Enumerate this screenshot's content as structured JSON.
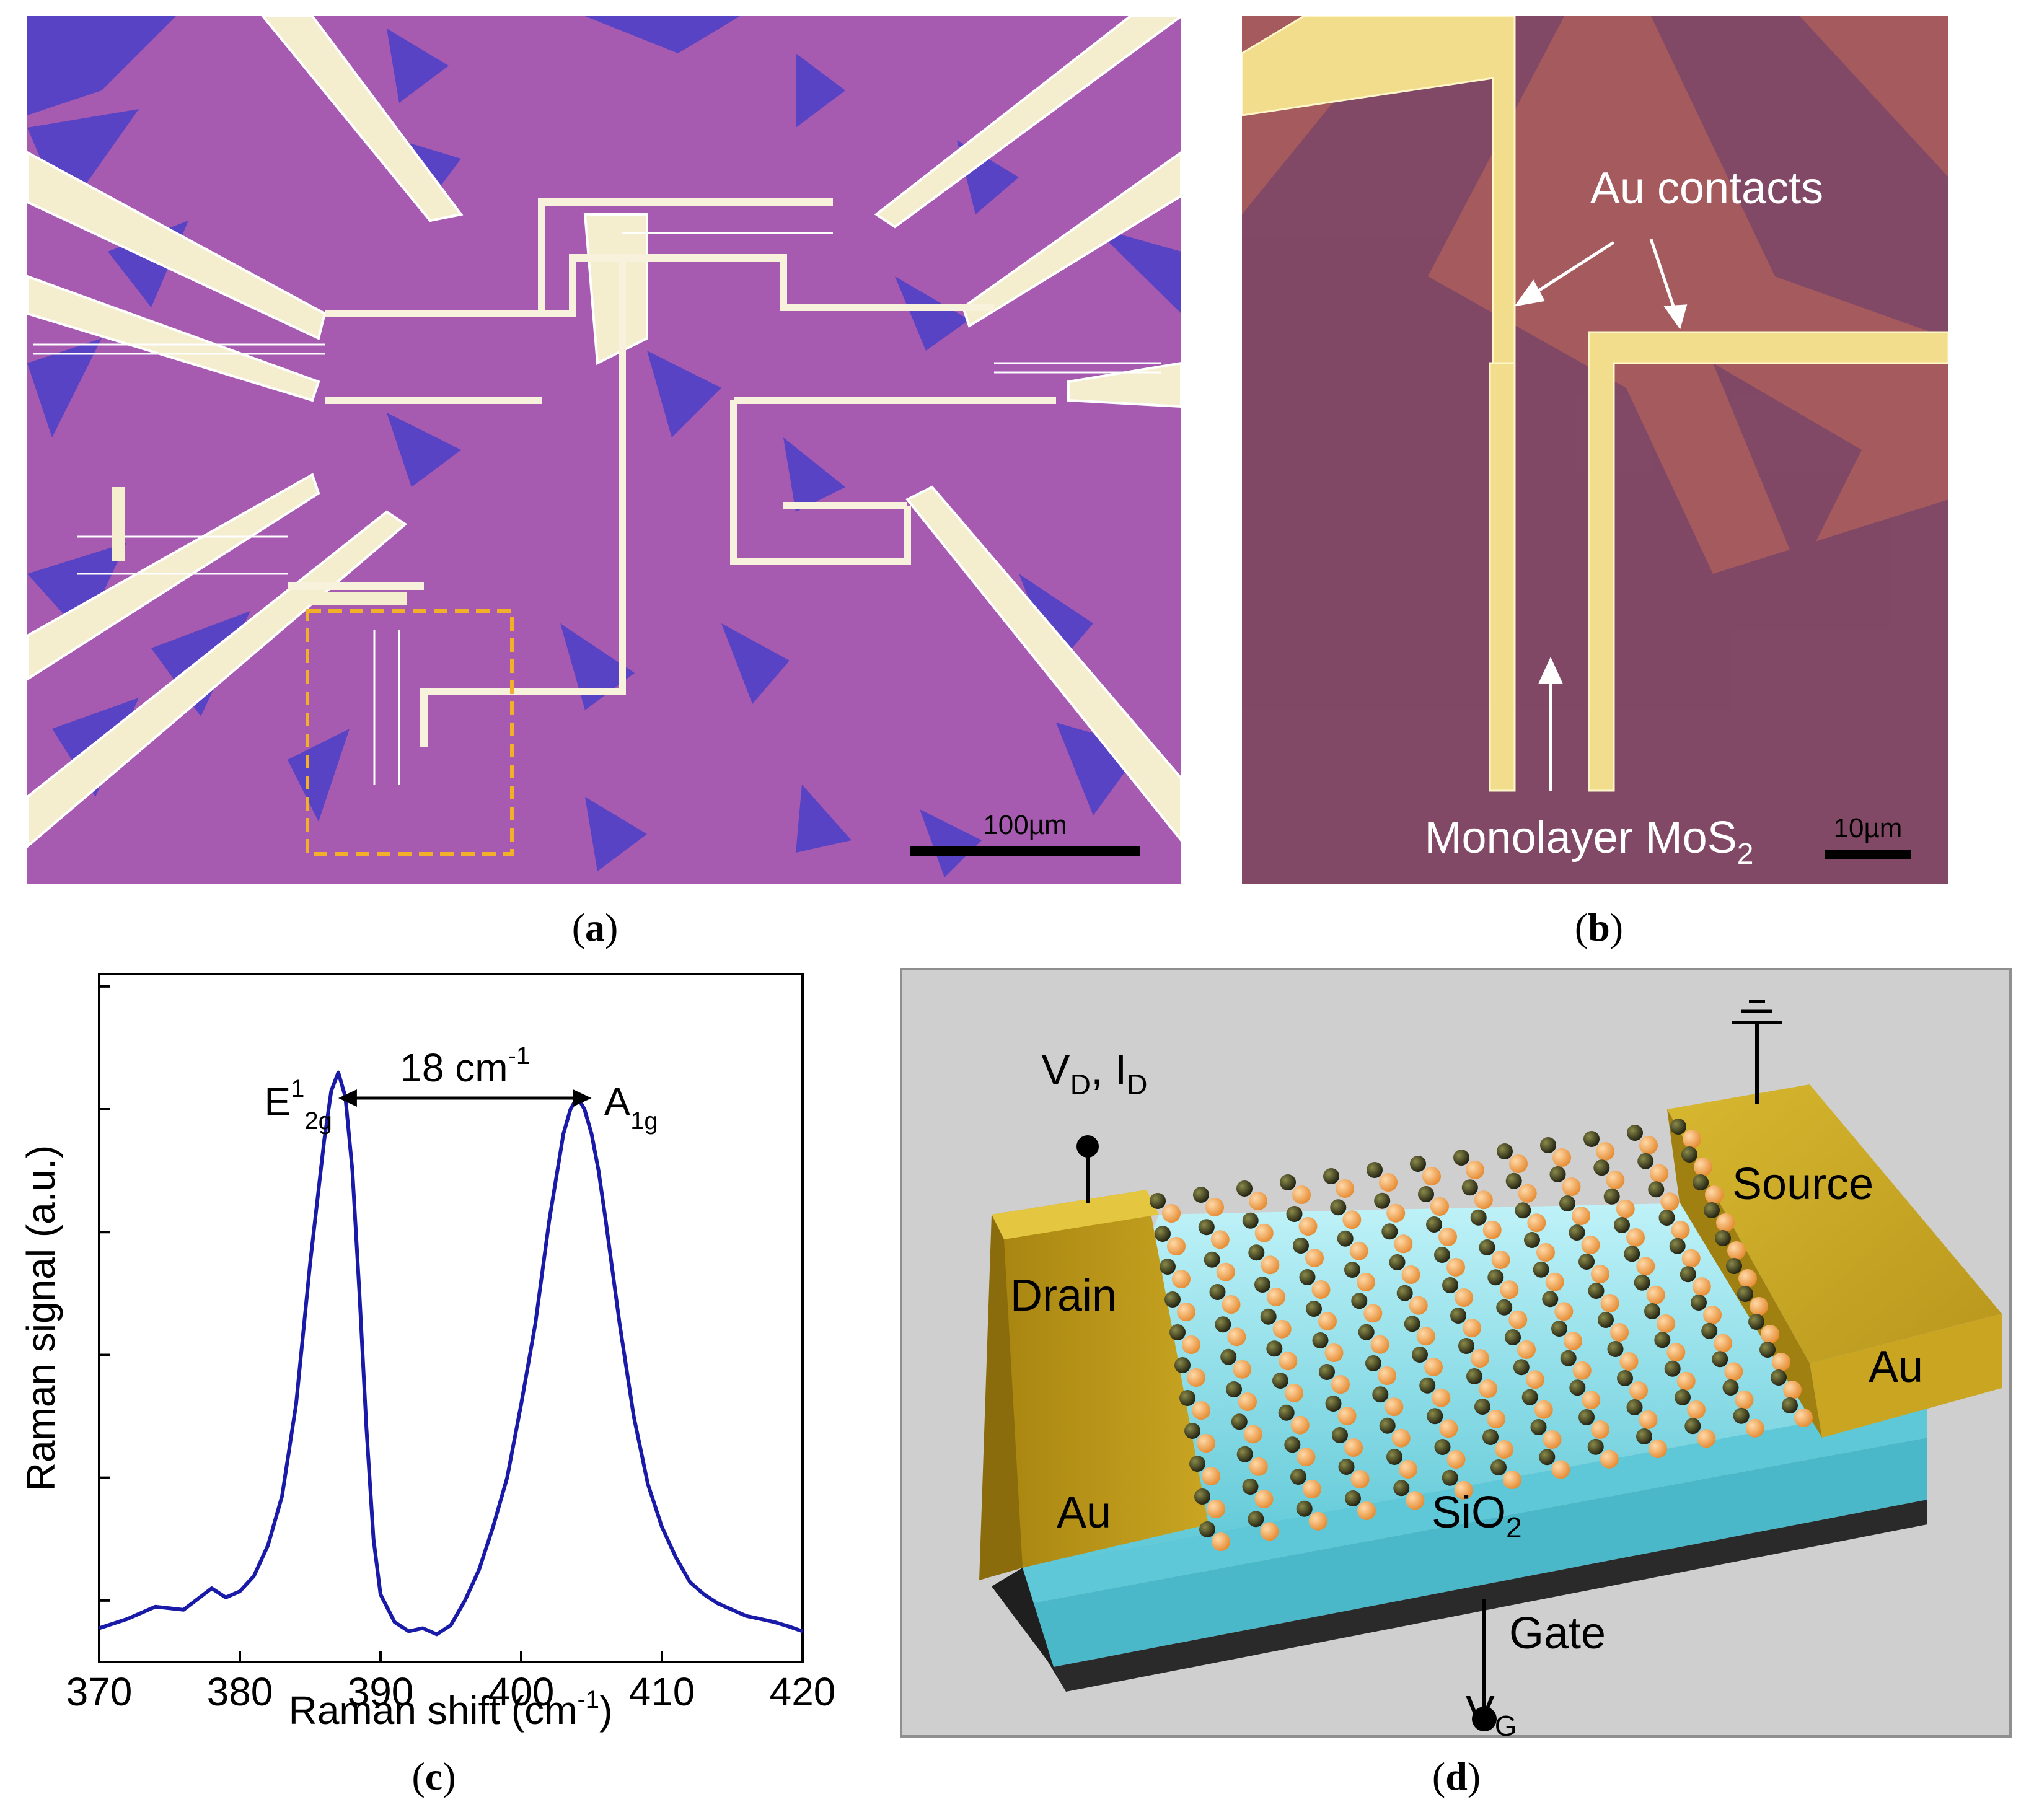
{
  "panel_a": {
    "scale_bar_label": "100µm",
    "caption_letter": "a"
  },
  "panel_b": {
    "annotation_contacts": "Au contacts",
    "annotation_monolayer": "Monolayer MoS",
    "annotation_monolayer_sub": "2",
    "scale_bar_label": "10µm",
    "caption_letter": "b"
  },
  "panel_c": {
    "caption_letter": "c"
  },
  "panel_d": {
    "label_vd": "V",
    "label_vd_sub": "D",
    "label_id_sep": ", I",
    "label_id_sub": "D",
    "label_drain": "Drain",
    "label_source": "Source",
    "label_au_left": "Au",
    "label_au_right": "Au",
    "label_sio2": "SiO",
    "label_sio2_sub": "2",
    "label_gate": "Gate",
    "label_vg": "V",
    "label_vg_sub": "G",
    "caption_letter": "d"
  },
  "chart_data": {
    "type": "line",
    "title": "",
    "xlabel": "Raman shift (cm",
    "xlabel_sup": "-1",
    "xlabel_close": ")",
    "ylabel": "Raman signal (a.u.)",
    "xlim": [
      370,
      420
    ],
    "ylim": [
      0,
      1.12
    ],
    "xticks": [
      370,
      380,
      390,
      400,
      410,
      420
    ],
    "xtick_labels": [
      "370",
      "380",
      "390",
      "400",
      "410",
      "420"
    ],
    "yticks": [
      0.1,
      0.3,
      0.5,
      0.7,
      0.9,
      1.1
    ],
    "series": [
      {
        "name": "MoS2 monolayer",
        "color": "#1a1aa8",
        "x": [
          370,
          372,
          374,
          376,
          378,
          379,
          380,
          381,
          382,
          383,
          384,
          385,
          386,
          386.5,
          387,
          387.5,
          388,
          388.5,
          389,
          389.5,
          390,
          391,
          392,
          393,
          394,
          395,
          396,
          397,
          398,
          399,
          400,
          401,
          402,
          403,
          403.5,
          404,
          404.5,
          405,
          405.5,
          406,
          407,
          408,
          409,
          410,
          411,
          412,
          413,
          414,
          415,
          416,
          417,
          418,
          419,
          420
        ],
        "y": [
          0.055,
          0.07,
          0.09,
          0.085,
          0.12,
          0.105,
          0.115,
          0.14,
          0.19,
          0.27,
          0.42,
          0.65,
          0.85,
          0.93,
          0.96,
          0.92,
          0.8,
          0.6,
          0.38,
          0.2,
          0.11,
          0.065,
          0.05,
          0.055,
          0.045,
          0.06,
          0.1,
          0.15,
          0.22,
          0.3,
          0.42,
          0.55,
          0.72,
          0.86,
          0.9,
          0.92,
          0.9,
          0.86,
          0.8,
          0.72,
          0.55,
          0.4,
          0.29,
          0.22,
          0.17,
          0.13,
          0.11,
          0.095,
          0.085,
          0.075,
          0.07,
          0.065,
          0.058,
          0.05
        ]
      }
    ],
    "annotations": {
      "peak1_main": "E",
      "peak1_sup": "1",
      "peak1_sub": "2g",
      "peak2_main": "A",
      "peak2_sub": "1g",
      "separation_main": "18 cm",
      "separation_sup": "-1",
      "peak1_x": 387,
      "peak2_x": 405
    }
  }
}
